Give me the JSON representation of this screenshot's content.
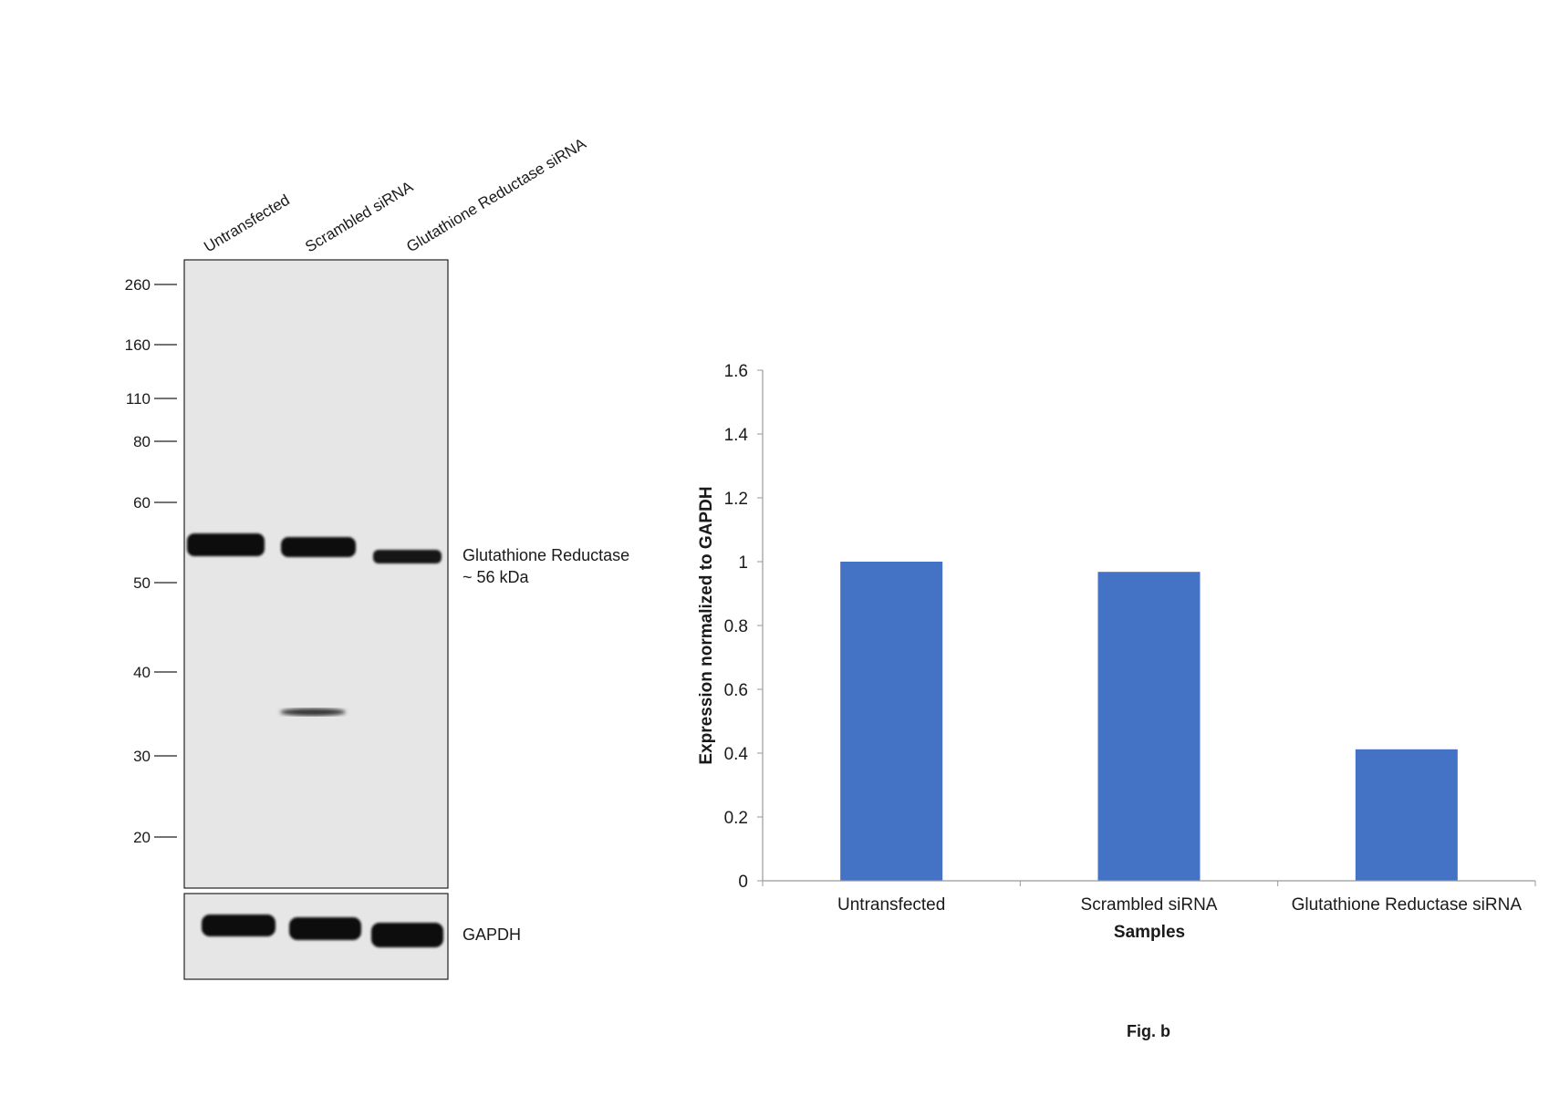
{
  "blot": {
    "lanes": [
      "Untransfected",
      "Scrambled siRNA",
      "Glutathione Reductase siRNA"
    ],
    "mw_markers": [
      "260",
      "160",
      "110",
      "80",
      "60",
      "50",
      "40",
      "30",
      "20"
    ],
    "target_label": "Glutathione Reductase",
    "target_size": "~ 56 kDa",
    "loading_control": "GAPDH"
  },
  "chart_data": {
    "type": "bar",
    "categories": [
      "Untransfected",
      "Scrambled siRNA",
      "Glutathione Reductase siRNA"
    ],
    "values": [
      1.0,
      0.968,
      0.412
    ],
    "title": "",
    "xlabel": "Samples",
    "ylabel": "Expression normalized to GAPDH",
    "ylim": [
      0,
      1.6
    ],
    "yticks": [
      "0",
      "0.2",
      "0.4",
      "0.6",
      "0.8",
      "1",
      "1.2",
      "1.4",
      "1.6"
    ],
    "grid": false,
    "bar_color": "#4472C4"
  },
  "caption": "Fig. b"
}
